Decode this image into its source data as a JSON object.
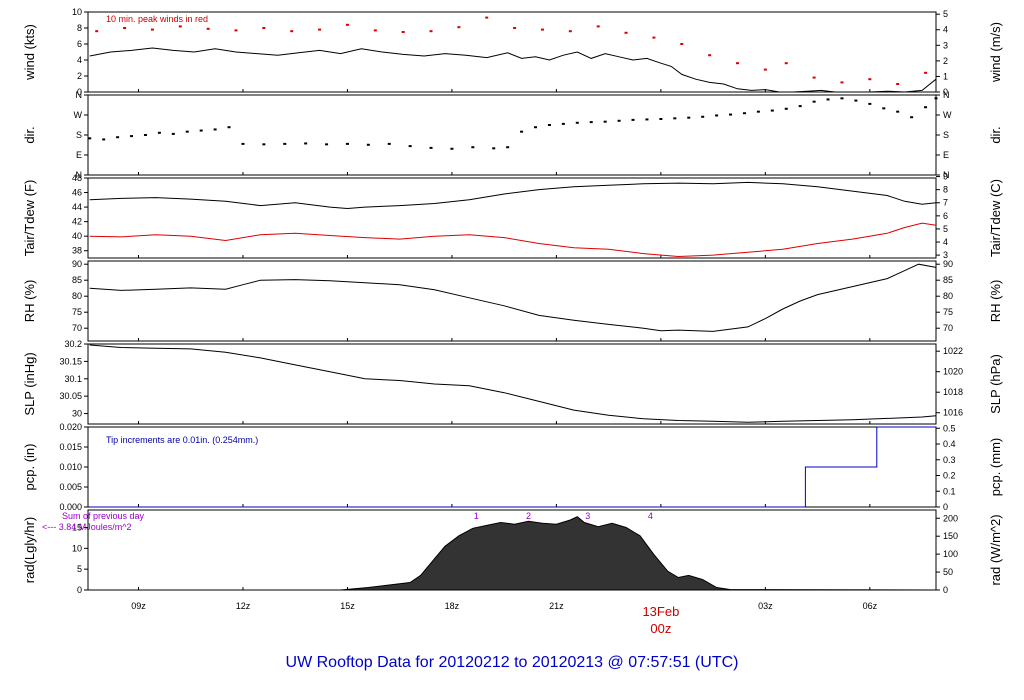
{
  "title": "UW Rooftop Data for 20120212  to  20120213 @ 07:57:51  (UTC)",
  "colors": {
    "title": "#0000cc",
    "dew": "#dd0000",
    "peak": "#dd0000",
    "precip": "#0000cc",
    "note_red": "#cc0000",
    "note_blue": "#0000aa",
    "note_purple": "#9900cc",
    "day_label": "#cc0000"
  },
  "time_axis": {
    "start_hour": 7.55,
    "end_hour": 31.9,
    "ticks": [
      {
        "hour": 9,
        "label": "09z"
      },
      {
        "hour": 12,
        "label": "12z"
      },
      {
        "hour": 15,
        "label": "15z"
      },
      {
        "hour": 18,
        "label": "18z"
      },
      {
        "hour": 21,
        "label": "21z"
      },
      {
        "hour": 24,
        "label": "00z"
      },
      {
        "hour": 27,
        "label": "03z"
      },
      {
        "hour": 30,
        "label": "06z"
      }
    ],
    "day_label": "13Feb"
  },
  "chart_data": [
    {
      "id": "wind",
      "type": "line",
      "ylabel_left": "wind (kts)",
      "ylabel_right": "wind (m/s)",
      "ylim": [
        0,
        10
      ],
      "yticks_left": [
        0,
        2,
        4,
        6,
        8,
        10
      ],
      "ylim_right": [
        0,
        5.14
      ],
      "yticks_right": [
        0,
        1,
        2,
        3,
        4,
        5
      ],
      "annotation": "10 min. peak winds in red",
      "series": [
        {
          "role": "speed",
          "x": [
            7.6,
            8.2,
            8.8,
            9.4,
            10.0,
            10.6,
            11.2,
            11.8,
            12.4,
            13.0,
            13.6,
            14.2,
            14.8,
            15.4,
            16.0,
            16.6,
            17.2,
            17.8,
            18.4,
            19.0,
            19.6,
            20.0,
            20.4,
            20.8,
            21.2,
            21.6,
            22.0,
            22.4,
            22.8,
            23.2,
            23.6,
            24.0,
            24.3,
            24.6,
            25.0,
            25.4,
            25.8,
            26.2,
            26.6,
            27.0,
            27.4,
            27.8,
            28.2,
            28.6,
            29.0,
            29.5,
            30.0,
            30.5,
            31.0,
            31.5,
            31.9
          ],
          "y": [
            4.5,
            5.0,
            5.2,
            5.5,
            5.2,
            5.0,
            5.4,
            5.0,
            4.8,
            4.6,
            4.9,
            5.2,
            4.8,
            5.4,
            5.0,
            4.7,
            4.5,
            4.8,
            4.6,
            4.3,
            4.9,
            4.2,
            4.4,
            4.0,
            4.6,
            5.0,
            4.2,
            4.8,
            4.4,
            4.0,
            4.2,
            3.6,
            3.2,
            2.2,
            1.6,
            1.2,
            1.0,
            0.4,
            0.2,
            0.3,
            0.0,
            0.0,
            0.1,
            0.2,
            0.0,
            0.0,
            0.0,
            0.1,
            0.0,
            0.2,
            1.6
          ]
        },
        {
          "role": "peak",
          "x": [
            7.8,
            8.6,
            9.4,
            10.2,
            11.0,
            11.8,
            12.6,
            13.4,
            14.2,
            15.0,
            15.8,
            16.6,
            17.4,
            18.2,
            19.0,
            19.8,
            20.6,
            21.4,
            22.2,
            23.0,
            23.8,
            24.6,
            25.4,
            26.2,
            27.0,
            27.6,
            28.4,
            29.2,
            30.0,
            30.8,
            31.6
          ],
          "y": [
            7.6,
            8.0,
            7.8,
            8.2,
            7.9,
            7.7,
            8.0,
            7.6,
            7.8,
            8.4,
            7.7,
            7.5,
            7.6,
            8.1,
            9.3,
            8.0,
            7.8,
            7.6,
            8.2,
            7.4,
            6.8,
            6.0,
            4.6,
            3.6,
            2.8,
            3.6,
            1.8,
            1.2,
            1.6,
            1.0,
            2.4
          ]
        }
      ]
    },
    {
      "id": "dir",
      "type": "scatter",
      "ylabel_left": "dir.",
      "ylabel_right": "dir.",
      "ylim": [
        0,
        360
      ],
      "yticks_left": [
        {
          "value": 0,
          "label": "N"
        },
        {
          "value": 90,
          "label": "E"
        },
        {
          "value": 180,
          "label": "S"
        },
        {
          "value": 270,
          "label": "W"
        },
        {
          "value": 360,
          "label": "N"
        }
      ],
      "yticks_right": [
        {
          "value": 0,
          "label": "N"
        },
        {
          "value": 90,
          "label": "E"
        },
        {
          "value": 180,
          "label": "S"
        },
        {
          "value": 270,
          "label": "W"
        },
        {
          "value": 360,
          "label": "N"
        }
      ],
      "series": [
        {
          "role": "direction",
          "x": [
            7.6,
            8.0,
            8.4,
            8.8,
            9.2,
            9.6,
            10.0,
            10.4,
            10.8,
            11.2,
            11.6,
            12.0,
            12.6,
            13.2,
            13.8,
            14.4,
            15.0,
            15.6,
            16.2,
            16.8,
            17.4,
            18.0,
            18.6,
            19.2,
            19.6,
            20.0,
            20.4,
            20.8,
            21.2,
            21.6,
            22.0,
            22.4,
            22.8,
            23.2,
            23.6,
            24.0,
            24.4,
            24.8,
            25.2,
            25.6,
            26.0,
            26.4,
            26.8,
            27.2,
            27.6,
            28.0,
            28.4,
            28.8,
            29.2,
            29.6,
            30.0,
            30.4,
            30.8,
            31.2,
            31.6,
            31.9
          ],
          "y": [
            165,
            160,
            170,
            175,
            180,
            190,
            185,
            195,
            200,
            205,
            215,
            140,
            138,
            140,
            142,
            138,
            140,
            136,
            140,
            130,
            122,
            118,
            125,
            120,
            125,
            195,
            215,
            225,
            230,
            235,
            238,
            240,
            244,
            248,
            250,
            252,
            255,
            258,
            262,
            268,
            272,
            278,
            285,
            290,
            298,
            310,
            330,
            340,
            345,
            335,
            320,
            300,
            285,
            260,
            305,
            345
          ]
        }
      ]
    },
    {
      "id": "temp",
      "type": "line",
      "ylabel_left": "Tair/Tdew (F)",
      "ylabel_right": "Tair/Tdew (C)",
      "ylim": [
        37,
        48
      ],
      "yticks_left": [
        38,
        40,
        42,
        44,
        46,
        48
      ],
      "ylim_right": [
        2.78,
        8.89
      ],
      "yticks_right": [
        3,
        4,
        5,
        6,
        7,
        8,
        9
      ],
      "series": [
        {
          "role": "tair",
          "x": [
            7.6,
            8.5,
            9.5,
            10.5,
            11.5,
            12.5,
            13.5,
            14.5,
            15.0,
            15.5,
            16.5,
            17.5,
            18.5,
            19.5,
            20.5,
            21.5,
            22.5,
            23.5,
            24.5,
            25.5,
            26.5,
            27.5,
            28.5,
            29.5,
            30.5,
            31.0,
            31.5,
            31.9
          ],
          "y": [
            45.0,
            45.2,
            45.3,
            45.1,
            44.8,
            44.2,
            44.6,
            44.0,
            43.8,
            44.0,
            44.2,
            44.5,
            45.0,
            45.8,
            46.4,
            46.8,
            47.0,
            47.2,
            47.3,
            47.2,
            47.4,
            47.2,
            46.8,
            46.2,
            45.6,
            44.8,
            44.4,
            44.6
          ]
        },
        {
          "role": "tdew",
          "x": [
            7.6,
            8.5,
            9.5,
            10.5,
            11.5,
            12.5,
            13.5,
            14.5,
            15.5,
            16.5,
            17.5,
            18.5,
            19.5,
            20.5,
            21.5,
            22.5,
            23.5,
            24.5,
            25.5,
            26.5,
            27.5,
            28.5,
            29.5,
            30.5,
            31.0,
            31.5,
            31.9
          ],
          "y": [
            40.0,
            39.9,
            40.2,
            40.0,
            39.4,
            40.2,
            40.4,
            40.1,
            39.8,
            39.6,
            40.0,
            40.2,
            39.8,
            39.0,
            38.4,
            38.2,
            37.6,
            37.2,
            37.4,
            37.8,
            38.2,
            39.0,
            39.6,
            40.4,
            41.2,
            41.8,
            41.5
          ]
        }
      ]
    },
    {
      "id": "rh",
      "type": "line",
      "ylabel_left": "RH (%)",
      "ylabel_right": "RH (%)",
      "ylim": [
        66,
        91
      ],
      "yticks_left": [
        70,
        75,
        80,
        85,
        90
      ],
      "yticks_right": [
        70,
        75,
        80,
        85,
        90
      ],
      "series": [
        {
          "role": "rh",
          "x": [
            7.6,
            8.5,
            9.5,
            10.5,
            11.5,
            12.0,
            12.5,
            13.5,
            14.5,
            15.5,
            16.5,
            17.5,
            18.5,
            19.5,
            20.5,
            21.5,
            22.5,
            23.5,
            24.0,
            24.5,
            25.5,
            26.5,
            27.0,
            27.5,
            28.0,
            28.5,
            29.5,
            30.5,
            31.0,
            31.4,
            31.9
          ],
          "y": [
            82.5,
            81.8,
            82.2,
            82.6,
            82.2,
            83.6,
            85.0,
            85.2,
            84.8,
            84.2,
            83.6,
            82.0,
            79.5,
            77.0,
            74.0,
            72.5,
            71.2,
            70.0,
            69.2,
            69.4,
            69.0,
            70.4,
            73.0,
            76.0,
            78.5,
            80.5,
            83.0,
            85.5,
            88.0,
            90.0,
            89.0
          ]
        }
      ]
    },
    {
      "id": "slp",
      "type": "line",
      "ylabel_left": "SLP (inHg)",
      "ylabel_right": "SLP (hPa)",
      "ylim": [
        29.97,
        30.2
      ],
      "yticks_left": [
        30.0,
        30.05,
        30.1,
        30.15,
        30.2
      ],
      "ylim_right": [
        1014.9,
        1022.7
      ],
      "yticks_right": [
        1016,
        1018,
        1020,
        1022
      ],
      "series": [
        {
          "role": "slp",
          "x": [
            7.6,
            8.5,
            9.5,
            10.5,
            11.5,
            12.5,
            13.5,
            14.5,
            15.5,
            16.5,
            17.5,
            18.5,
            19.5,
            20.5,
            21.5,
            22.5,
            23.5,
            24.5,
            25.5,
            26.5,
            27.5,
            28.5,
            29.5,
            30.5,
            31.5,
            31.9
          ],
          "y": [
            30.197,
            30.19,
            30.188,
            30.186,
            30.176,
            30.16,
            30.14,
            30.12,
            30.1,
            30.095,
            30.085,
            30.08,
            30.06,
            30.035,
            30.01,
            29.995,
            29.985,
            29.98,
            29.978,
            29.975,
            29.978,
            29.98,
            29.982,
            29.986,
            29.99,
            29.994
          ]
        }
      ]
    },
    {
      "id": "pcp",
      "type": "line",
      "ylabel_left": "pcp. (in)",
      "ylabel_right": "pcp. (mm)",
      "ylim": [
        0,
        0.02
      ],
      "yticks_left": [
        0.0,
        0.005,
        0.01,
        0.015,
        0.02
      ],
      "yticks_left_labels": [
        "0.000",
        "0.005",
        "0.010",
        "0.015",
        "0.020"
      ],
      "ylim_right": [
        0,
        0.508
      ],
      "yticks_right": [
        0,
        0.1,
        0.2,
        0.3,
        0.4,
        0.5
      ],
      "annotation": "Tip increments are 0.01in. (0.254mm.)",
      "series": [
        {
          "role": "precip",
          "step": true,
          "x": [
            7.6,
            28.15,
            28.15,
            30.2,
            30.2,
            31.9
          ],
          "y": [
            0.0,
            0.0,
            0.01,
            0.01,
            0.02,
            0.02
          ]
        }
      ]
    },
    {
      "id": "rad",
      "type": "area",
      "ylabel_left": "rad(Lgly/hr)",
      "ylabel_right": "rad (W/m^2)",
      "ylim": [
        0,
        19.2
      ],
      "yticks_left": [
        0,
        5,
        10,
        15
      ],
      "ylim_right": [
        0,
        223
      ],
      "yticks_right": [
        0,
        50,
        100,
        150,
        200
      ],
      "annotation_line1": "Sum of previous day",
      "annotation_line2": "<--- 3.84 MJoules/m^2",
      "markers": [
        {
          "hour": 18.7,
          "label": "1"
        },
        {
          "hour": 20.2,
          "label": "2"
        },
        {
          "hour": 21.9,
          "label": "3"
        },
        {
          "hour": 23.7,
          "label": "4"
        }
      ],
      "series": [
        {
          "role": "radiation",
          "x": [
            7.6,
            14.8,
            15.2,
            15.6,
            16.2,
            16.8,
            17.1,
            17.4,
            17.8,
            18.2,
            18.6,
            19.0,
            19.4,
            19.8,
            20.2,
            20.6,
            21.0,
            21.4,
            21.6,
            21.8,
            22.2,
            22.6,
            23.0,
            23.4,
            23.8,
            24.2,
            24.5,
            24.8,
            25.2,
            25.6,
            26.0,
            31.9
          ],
          "y": [
            0,
            0,
            0.3,
            0.6,
            1.2,
            1.8,
            3.5,
            6.5,
            10.5,
            13.0,
            14.8,
            15.5,
            16.2,
            15.8,
            16.5,
            16.0,
            15.8,
            16.8,
            17.6,
            16.2,
            15.2,
            16.0,
            15.0,
            13.0,
            8.5,
            4.5,
            3.0,
            3.5,
            2.5,
            0.6,
            0.1,
            0
          ]
        }
      ]
    }
  ]
}
